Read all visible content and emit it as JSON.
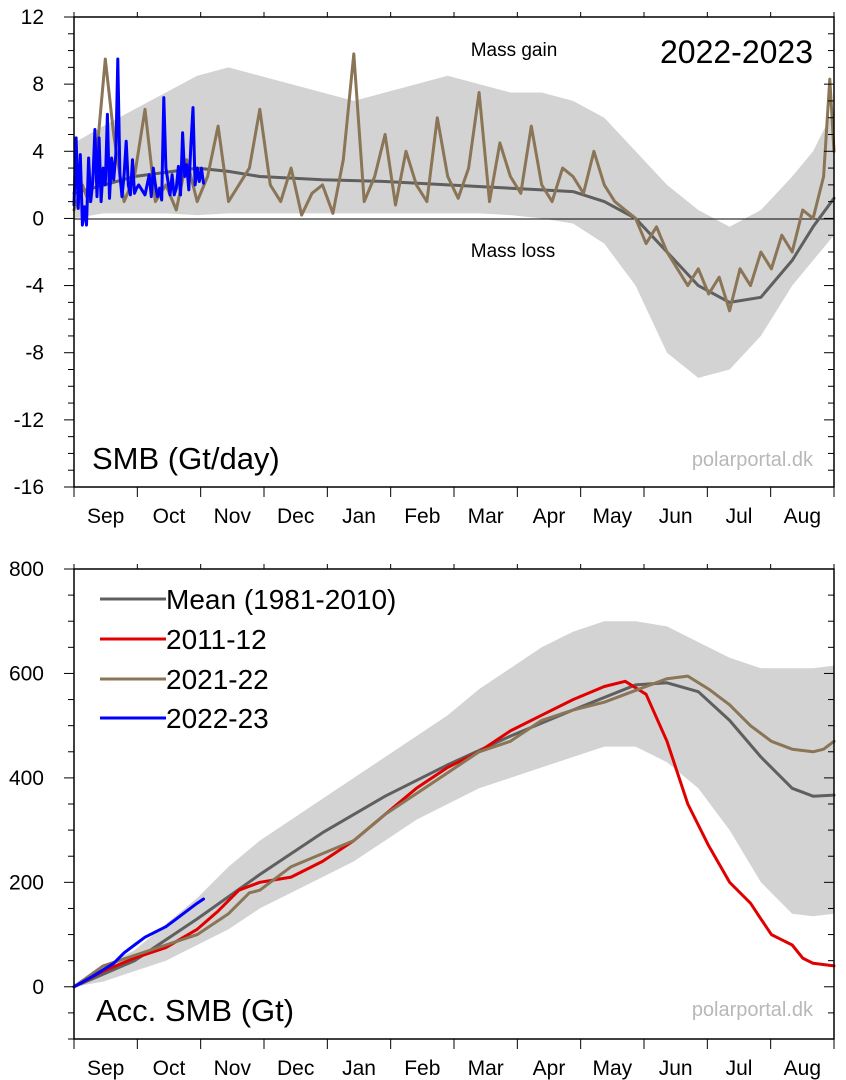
{
  "colors": {
    "mean": "#5f5f5f",
    "y2011": "#e00000",
    "y2021": "#8a7556",
    "y2022": "#0000ff",
    "band": "#d3d3d3",
    "watermark": "#b8b8b8"
  },
  "months": [
    "Sep",
    "Oct",
    "Nov",
    "Dec",
    "Jan",
    "Feb",
    "Mar",
    "Apr",
    "May",
    "Jun",
    "Jul",
    "Aug"
  ],
  "watermark": "polarportal.dk",
  "top": {
    "season_label": "2022-2023",
    "panel_label": "SMB (Gt/day)",
    "gain_label": "Mass gain",
    "loss_label": "Mass loss"
  },
  "bottom": {
    "panel_label": "Acc. SMB (Gt)",
    "legend": {
      "mean": "Mean (1981-2010)",
      "y2011": "2011-12",
      "y2021": "2021-22",
      "y2022": "2022-23"
    }
  },
  "chart_data": [
    {
      "type": "line",
      "title": "2022-2023",
      "ylabel": "SMB (Gt/day)",
      "ylim": [
        -16,
        12
      ],
      "yticks": [
        -16,
        -12,
        -8,
        -4,
        0,
        4,
        8,
        12
      ],
      "x_unit": "day of season (1 = 1 Sep)",
      "xlim": [
        1,
        365
      ],
      "grid": false,
      "annotations": [
        "Mass gain",
        "Mass loss"
      ],
      "band_1981_2010": {
        "x": [
          1,
          15,
          30,
          45,
          60,
          75,
          90,
          105,
          120,
          135,
          150,
          165,
          180,
          195,
          210,
          225,
          240,
          255,
          270,
          285,
          300,
          315,
          330,
          345,
          355,
          365
        ],
        "low": [
          0.0,
          0.3,
          0.3,
          0.3,
          0.2,
          0.3,
          0.3,
          0.3,
          0.3,
          0.3,
          0.3,
          0.3,
          0.3,
          0.3,
          0.2,
          0.0,
          -0.3,
          -1.5,
          -4.0,
          -8.0,
          -9.5,
          -9.0,
          -7.0,
          -4.0,
          -2.5,
          -1.0
        ],
        "high": [
          4.5,
          5.5,
          6.5,
          7.5,
          8.5,
          9.0,
          8.5,
          8.0,
          7.5,
          7.0,
          7.5,
          8.0,
          8.5,
          8.0,
          7.5,
          7.5,
          7.0,
          6.0,
          4.0,
          2.0,
          0.5,
          -0.5,
          0.5,
          2.5,
          4.0,
          6.5
        ]
      },
      "series": [
        {
          "name": "Mean (1981-2010)",
          "x": [
            1,
            30,
            60,
            75,
            90,
            120,
            150,
            180,
            210,
            225,
            240,
            255,
            270,
            285,
            300,
            315,
            330,
            345,
            355,
            365
          ],
          "y": [
            1.5,
            2.5,
            3.0,
            2.8,
            2.5,
            2.3,
            2.2,
            2.0,
            1.8,
            1.7,
            1.6,
            1.0,
            0.0,
            -2.0,
            -4.0,
            -5.0,
            -4.7,
            -2.5,
            -0.5,
            1.2
          ]
        },
        {
          "name": "2021-22",
          "x": [
            1,
            5,
            8,
            12,
            16,
            20,
            25,
            30,
            35,
            40,
            45,
            50,
            55,
            60,
            65,
            70,
            75,
            80,
            85,
            90,
            95,
            100,
            105,
            110,
            115,
            120,
            125,
            130,
            135,
            140,
            145,
            150,
            155,
            160,
            165,
            170,
            175,
            180,
            185,
            190,
            195,
            200,
            205,
            210,
            215,
            220,
            225,
            230,
            235,
            240,
            245,
            250,
            255,
            260,
            265,
            270,
            275,
            280,
            285,
            290,
            295,
            300,
            305,
            310,
            315,
            320,
            325,
            330,
            335,
            340,
            345,
            350,
            355,
            360,
            363,
            365
          ],
          "y": [
            0.5,
            2.0,
            1.0,
            4.0,
            9.5,
            5.0,
            1.0,
            2.5,
            6.5,
            1.0,
            2.0,
            0.5,
            3.5,
            1.0,
            2.5,
            5.5,
            1.0,
            2.0,
            3.0,
            6.5,
            2.0,
            1.0,
            3.0,
            0.2,
            1.5,
            2.0,
            0.3,
            3.5,
            9.8,
            1.0,
            2.5,
            5.0,
            0.8,
            4.0,
            2.0,
            1.0,
            6.0,
            2.5,
            1.2,
            3.0,
            7.5,
            1.0,
            4.5,
            2.5,
            1.5,
            5.5,
            2.0,
            1.0,
            3.0,
            2.5,
            1.5,
            4.0,
            2.0,
            1.0,
            0.5,
            0.0,
            -1.5,
            -0.5,
            -2.0,
            -3.0,
            -4.0,
            -3.0,
            -4.5,
            -3.5,
            -5.5,
            -3.0,
            -4.0,
            -2.0,
            -3.0,
            -1.0,
            -2.0,
            0.5,
            0.0,
            2.5,
            8.3,
            4.0
          ]
        },
        {
          "name": "2022-23",
          "x": [
            1,
            2,
            3,
            4,
            5,
            6,
            7,
            8,
            9,
            10,
            11,
            12,
            13,
            14,
            15,
            16,
            17,
            18,
            19,
            20,
            21,
            22,
            23,
            24,
            25,
            26,
            27,
            28,
            29,
            30,
            31,
            32,
            33,
            34,
            35,
            36,
            37,
            38,
            39,
            40,
            41,
            42,
            43,
            44,
            45,
            46,
            47,
            48,
            49,
            50,
            51,
            52,
            53,
            54,
            55,
            56,
            57,
            58,
            59,
            60,
            61,
            62,
            63
          ],
          "y": [
            0.8,
            4.8,
            0.6,
            3.8,
            -0.4,
            0.7,
            -0.4,
            3.6,
            1.0,
            2.2,
            5.3,
            1.3,
            4.8,
            1.0,
            3.0,
            2.0,
            6.2,
            1.2,
            3.6,
            2.3,
            3.8,
            9.5,
            2.6,
            1.3,
            2.6,
            4.6,
            2.0,
            1.4,
            3.5,
            1.5,
            1.8,
            2.0,
            1.8,
            1.6,
            1.4,
            2.0,
            2.6,
            1.3,
            3.0,
            2.0,
            1.3,
            1.8,
            1.1,
            7.2,
            3.0,
            2.2,
            1.4,
            2.6,
            1.4,
            1.8,
            3.1,
            1.4,
            5.1,
            2.5,
            3.2,
            1.7,
            4.4,
            6.6,
            2.0,
            3.0,
            2.2,
            3.0,
            2.1
          ]
        }
      ]
    },
    {
      "type": "line",
      "ylabel": "Acc. SMB (Gt)",
      "ylim": [
        -100,
        800
      ],
      "yticks": [
        0,
        200,
        400,
        600,
        800
      ],
      "x_unit": "day of season (1 = 1 Sep)",
      "xlim": [
        1,
        365
      ],
      "grid": false,
      "legend_position": "top-left",
      "band_1981_2010": {
        "x": [
          1,
          15,
          30,
          45,
          60,
          75,
          90,
          105,
          120,
          135,
          150,
          165,
          180,
          195,
          210,
          225,
          240,
          255,
          270,
          285,
          300,
          315,
          330,
          345,
          355,
          365
        ],
        "low": [
          0,
          10,
          30,
          50,
          80,
          110,
          150,
          180,
          210,
          240,
          280,
          320,
          350,
          380,
          400,
          420,
          440,
          460,
          460,
          430,
          380,
          300,
          200,
          140,
          135,
          140
        ],
        "high": [
          5,
          40,
          70,
          120,
          170,
          230,
          280,
          320,
          360,
          400,
          440,
          480,
          520,
          570,
          610,
          650,
          680,
          700,
          700,
          690,
          660,
          630,
          610,
          610,
          610,
          615
        ]
      },
      "series": [
        {
          "name": "Mean (1981-2010)",
          "x": [
            1,
            30,
            60,
            90,
            120,
            150,
            180,
            210,
            240,
            270,
            285,
            300,
            315,
            330,
            345,
            355,
            365
          ],
          "y": [
            0,
            50,
            130,
            215,
            295,
            365,
            425,
            480,
            530,
            578,
            582,
            565,
            510,
            440,
            380,
            365,
            367
          ]
        },
        {
          "name": "2011-12",
          "x": [
            1,
            15,
            30,
            45,
            60,
            70,
            80,
            90,
            105,
            120,
            135,
            150,
            165,
            180,
            195,
            210,
            225,
            240,
            255,
            265,
            275,
            285,
            295,
            305,
            315,
            325,
            330,
            335,
            340,
            345,
            350,
            355,
            365
          ],
          "y": [
            0,
            30,
            55,
            75,
            110,
            145,
            185,
            200,
            210,
            240,
            280,
            330,
            380,
            420,
            450,
            490,
            520,
            550,
            575,
            585,
            560,
            470,
            350,
            270,
            200,
            160,
            130,
            100,
            90,
            80,
            55,
            45,
            40
          ]
        },
        {
          "name": "2021-22",
          "x": [
            1,
            15,
            30,
            45,
            60,
            75,
            85,
            90,
            105,
            120,
            135,
            150,
            165,
            180,
            195,
            210,
            225,
            240,
            255,
            265,
            275,
            285,
            295,
            305,
            315,
            325,
            335,
            345,
            355,
            360,
            365
          ],
          "y": [
            0,
            40,
            60,
            80,
            100,
            140,
            180,
            185,
            230,
            255,
            280,
            330,
            370,
            410,
            450,
            470,
            510,
            530,
            545,
            560,
            575,
            590,
            595,
            570,
            540,
            500,
            470,
            455,
            450,
            455,
            470
          ]
        },
        {
          "name": "2022-23",
          "x": [
            1,
            10,
            20,
            25,
            30,
            35,
            40,
            45,
            50,
            55,
            60,
            63
          ],
          "y": [
            0,
            20,
            45,
            65,
            80,
            95,
            105,
            115,
            130,
            145,
            160,
            168
          ]
        }
      ]
    }
  ]
}
